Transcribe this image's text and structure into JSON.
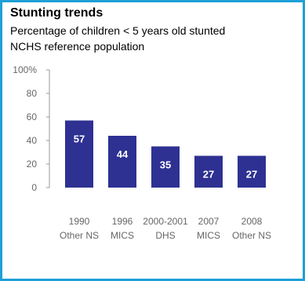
{
  "chart_data": {
    "type": "bar",
    "title": "Stunting trends",
    "subtitle_lines": [
      "Percentage of children  < 5 years old stunted",
      "NCHS reference population"
    ],
    "y_ticks": [
      "0",
      "20",
      "40",
      "60",
      "80",
      "100%"
    ],
    "ylim": [
      0,
      100
    ],
    "categories": [
      {
        "line1": "1990",
        "line2": "Other NS"
      },
      {
        "line1": "1996",
        "line2": "MICS"
      },
      {
        "line1": "2000-2001",
        "line2": "DHS"
      },
      {
        "line1": "2007",
        "line2": "MICS"
      },
      {
        "line1": "2008",
        "line2": "Other NS"
      }
    ],
    "values": [
      57,
      44,
      35,
      27,
      27
    ],
    "value_labels": [
      "57",
      "44",
      "35",
      "27",
      "27"
    ],
    "bar_color": "#2e3192",
    "border_color": "#1ea0d8",
    "grid": false
  }
}
